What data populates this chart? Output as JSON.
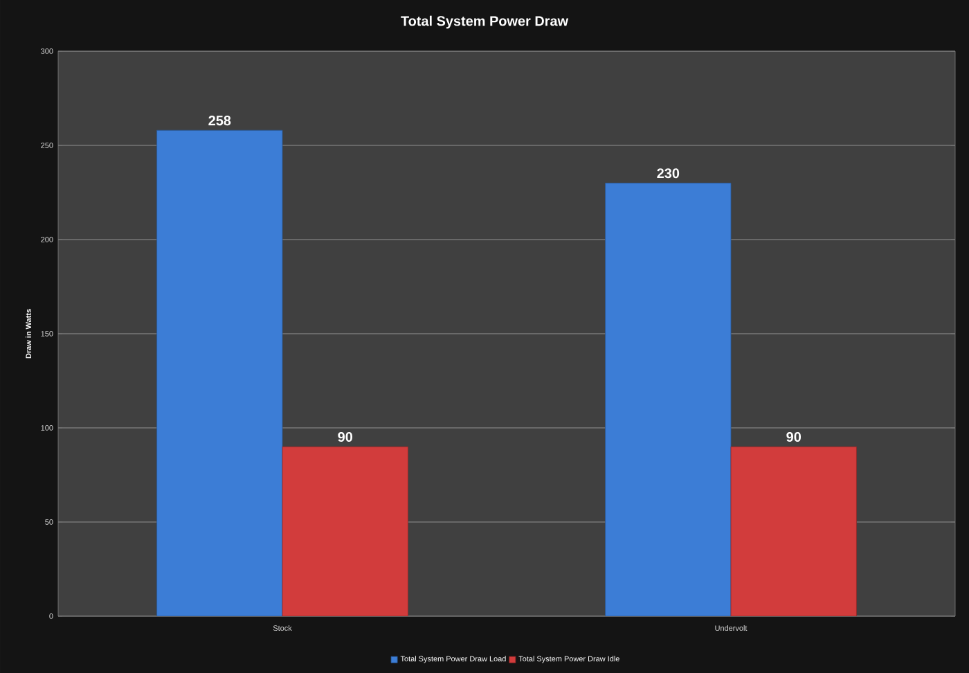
{
  "chart_data": {
    "type": "bar",
    "title": "Total System Power Draw",
    "ylabel": "Draw in Watts",
    "categories": [
      "Stock",
      "Undervolt"
    ],
    "series": [
      {
        "name": "Total System Power Draw Load",
        "color": "#3c7dd6",
        "values": [
          258,
          230
        ]
      },
      {
        "name": "Total System Power Draw Idle",
        "color": "#d23c3c",
        "values": [
          90,
          90
        ]
      }
    ],
    "ylim": [
      0,
      300
    ],
    "yticks": [
      0,
      50,
      100,
      150,
      200,
      250,
      300
    ],
    "grid": "y",
    "legend": "bottom",
    "data_labels": true
  }
}
